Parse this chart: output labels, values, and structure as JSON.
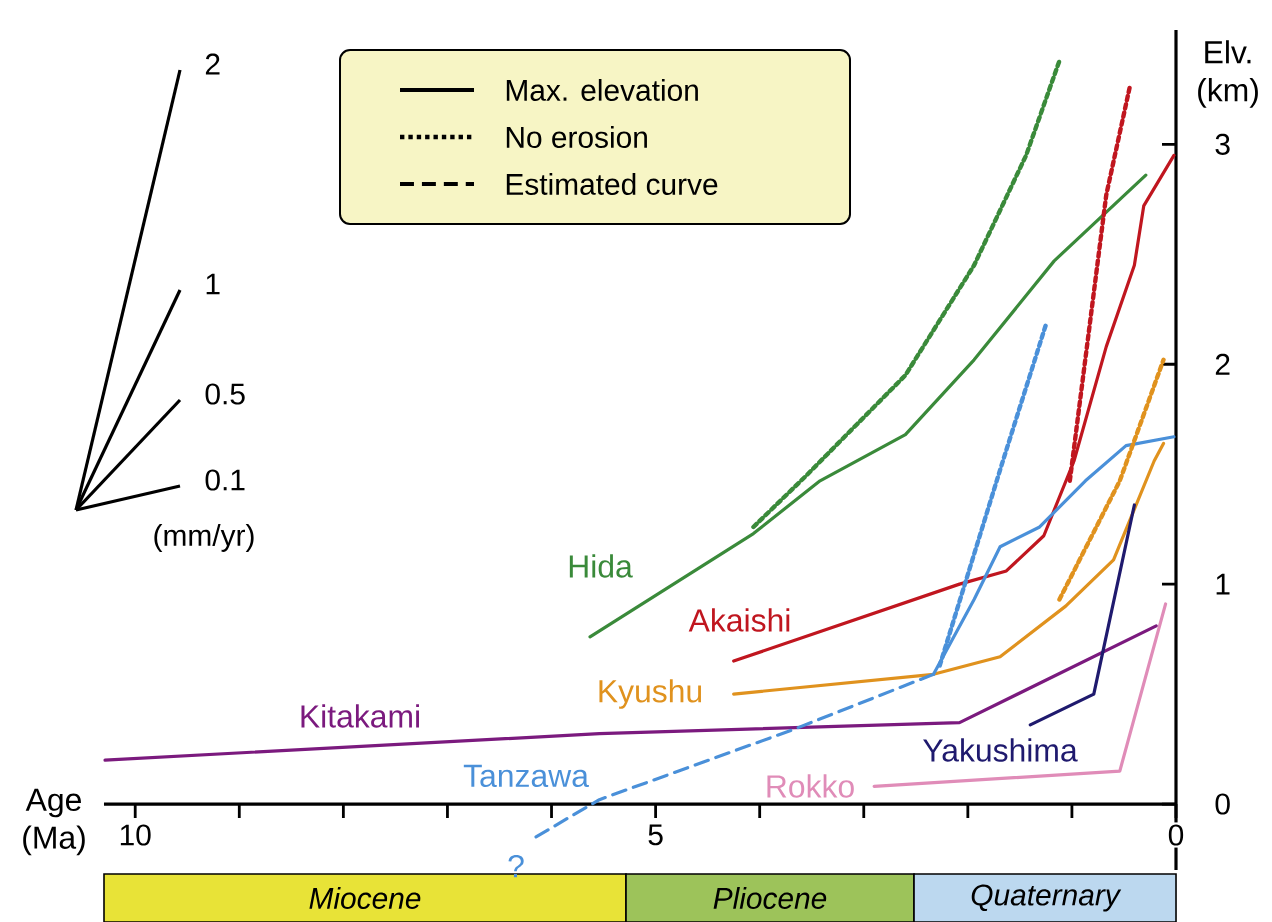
{
  "chart_data": {
    "type": "line",
    "xlabel": "Age (Ma)",
    "ylabel": "Elv. (km)",
    "xlim": [
      10.3,
      0
    ],
    "ylim": [
      -0.3,
      3.52
    ],
    "xticks": [
      10,
      {
        "value": 9,
        "label": null
      },
      {
        "value": 8,
        "label": null
      },
      {
        "value": 7,
        "label": null
      },
      {
        "value": 6,
        "label": null
      },
      5,
      {
        "value": 4,
        "label": null
      },
      {
        "value": 3,
        "label": null
      },
      {
        "value": 2,
        "label": null
      },
      {
        "value": 1,
        "label": null
      },
      0
    ],
    "yticks": [
      0,
      1,
      2,
      3
    ],
    "series": [
      {
        "name": "Hida",
        "color": "#3a8a3a",
        "line_style": "solid",
        "x": [
          5.63,
          4.06,
          3.42,
          2.6,
          1.94,
          1.17,
          0.29
        ],
        "values": [
          0.76,
          1.23,
          1.47,
          1.68,
          2.02,
          2.47,
          2.86
        ]
      },
      {
        "name": "Akaishi",
        "color": "#c0161f",
        "line_style": "solid",
        "x": [
          4.25,
          2.08,
          1.63,
          1.27,
          0.98,
          0.67,
          0.4,
          0.31,
          0.02
        ],
        "values": [
          0.65,
          1.0,
          1.06,
          1.22,
          1.56,
          2.08,
          2.45,
          2.72,
          2.95
        ]
      },
      {
        "name": "Kyushu",
        "color": "#e0921e",
        "line_style": "solid",
        "x": [
          4.25,
          2.33,
          1.69,
          1.06,
          0.6,
          0.21,
          0.12
        ],
        "values": [
          0.5,
          0.59,
          0.67,
          0.9,
          1.11,
          1.56,
          1.64
        ]
      },
      {
        "name": "Kitakami",
        "color": "#7b1a7e",
        "line_style": "solid",
        "x": [
          10.29,
          5.54,
          2.08,
          0.19
        ],
        "values": [
          0.2,
          0.32,
          0.37,
          0.81
        ]
      },
      {
        "name": "Tanzawa",
        "color": "#4a90d9",
        "line_style": "solid",
        "x": [
          2.33,
          1.94,
          1.69,
          1.31,
          0.87,
          0.48,
          0.02
        ],
        "values": [
          0.59,
          0.93,
          1.17,
          1.26,
          1.47,
          1.63,
          1.67
        ]
      },
      {
        "name": "Yakushima",
        "color": "#1f1a6e",
        "line_style": "solid",
        "x": [
          1.4,
          0.79,
          0.4
        ],
        "values": [
          0.36,
          0.5,
          1.36
        ]
      },
      {
        "name": "Rokko",
        "color": "#e08cb8",
        "line_style": "solid",
        "x": [
          2.9,
          0.54,
          0.1
        ],
        "values": [
          0.08,
          0.15,
          0.91
        ]
      },
      {
        "color": "#4a90d9",
        "line_style": "dashed",
        "x": [
          2.33,
          3.67,
          5.54,
          6.15
        ],
        "values": [
          0.59,
          0.34,
          0.02,
          -0.15
        ]
      },
      {
        "color": "#3a8a3a",
        "line_style": "dotted",
        "x": [
          4.06,
          3.56,
          2.6,
          1.94,
          1.44,
          1.12
        ],
        "values": [
          1.26,
          1.49,
          1.95,
          2.45,
          2.95,
          3.38
        ]
      },
      {
        "color": "#c0161f",
        "line_style": "dotted",
        "x": [
          1.02,
          0.67,
          0.44
        ],
        "values": [
          1.47,
          2.77,
          3.27
        ]
      },
      {
        "color": "#e0921e",
        "line_style": "dotted",
        "x": [
          1.12,
          0.54,
          0.12
        ],
        "values": [
          0.93,
          1.47,
          2.02
        ]
      },
      {
        "color": "#4a90d9",
        "line_style": "dotted",
        "x": [
          2.27,
          1.69,
          1.25
        ],
        "values": [
          0.63,
          1.52,
          2.18
        ]
      }
    ],
    "annotations": [
      "Max. elevation",
      "No erosion",
      "Estimated curve",
      "2",
      "1",
      "0.5",
      "0.1",
      "(mm/yr)",
      "Miocene",
      "Pliocene",
      "Quaternary",
      "?"
    ]
  }
}
